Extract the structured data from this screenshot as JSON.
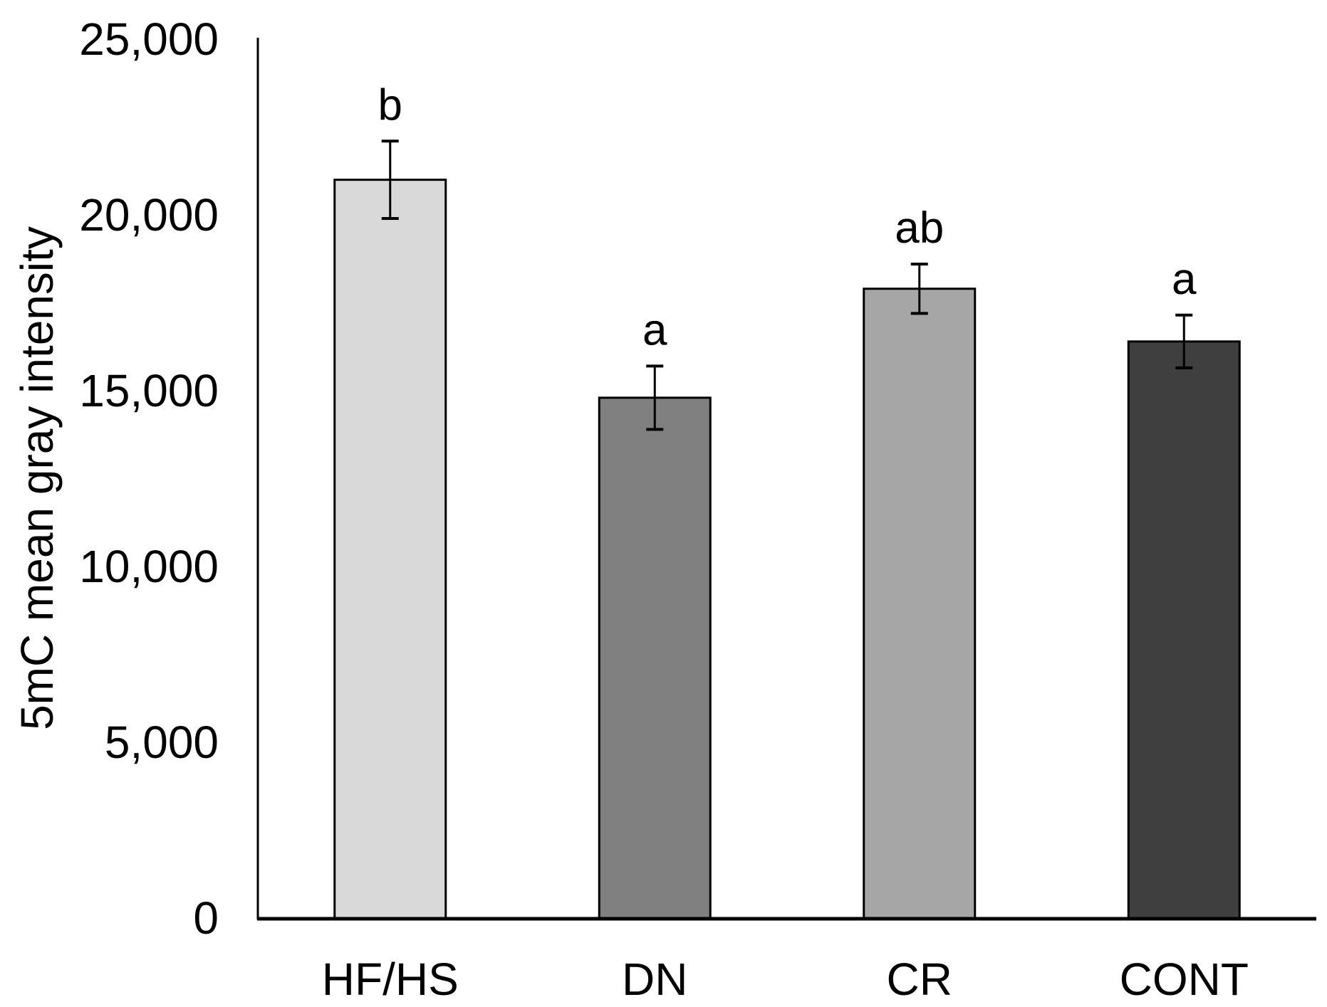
{
  "chart_data": {
    "type": "bar",
    "title": "",
    "xlabel": "",
    "ylabel": "5mC mean gray intensity",
    "categories": [
      "HF/HS",
      "DN",
      "CR",
      "CONT"
    ],
    "values": [
      21000,
      14800,
      17900,
      16400
    ],
    "error_bars": [
      1100,
      900,
      700,
      750
    ],
    "sig_letters": [
      "b",
      "a",
      "ab",
      "a"
    ],
    "bar_colors": [
      "#d9d9d9",
      "#808080",
      "#a6a6a6",
      "#3f3f3f"
    ],
    "bar_border_color": "#000000",
    "error_bar_color": "#000000",
    "axis_color": "#000000",
    "background_color": "#ffffff",
    "ylim": [
      0,
      25000
    ],
    "ytick_interval": 5000,
    "ytick_labels": [
      "0",
      "5,000",
      "10,000",
      "15,000",
      "20,000",
      "25,000"
    ],
    "grid": false,
    "legend": false
  }
}
